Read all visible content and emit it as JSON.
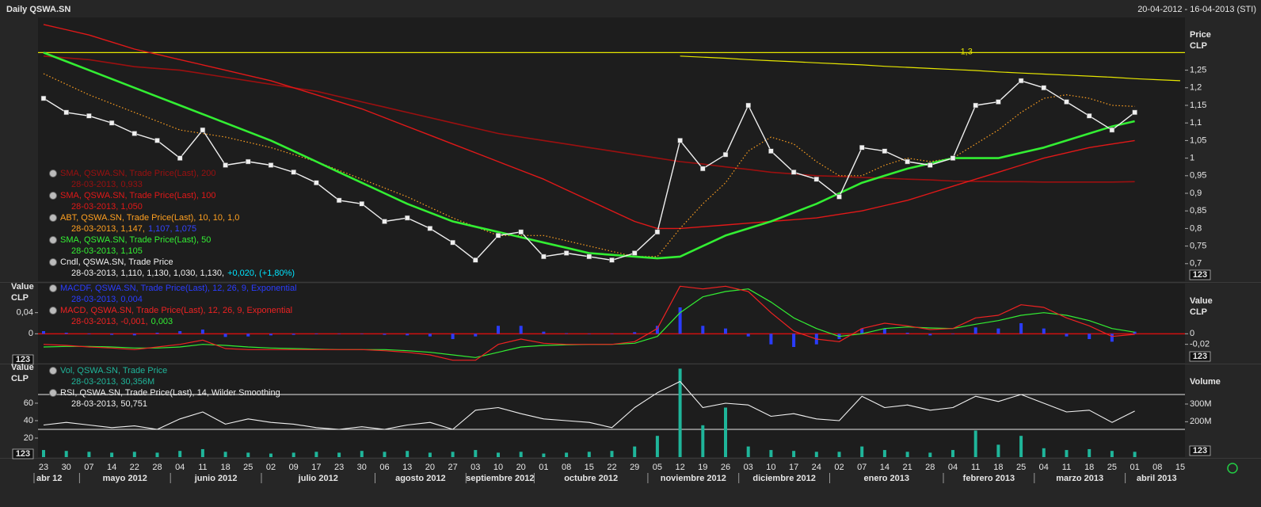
{
  "header": {
    "title": "Daily QSWA.SN",
    "range": "20-04-2012 - 16-04-2013 (STI)",
    "button": "123"
  },
  "chart_data": [
    {
      "type": "line",
      "axis_label_right": [
        "Price",
        "CLP"
      ],
      "ylim": [
        0.65,
        1.4
      ],
      "yticks": [
        {
          "value": 0.7,
          "label": "0,7"
        },
        {
          "value": 0.75,
          "label": "0,75"
        },
        {
          "value": 0.8,
          "label": "0,8"
        },
        {
          "value": 0.85,
          "label": "0,85"
        },
        {
          "value": 0.9,
          "label": "0,9"
        },
        {
          "value": 0.95,
          "label": "0,95"
        },
        1,
        {
          "value": 1.05,
          "label": "1,05"
        },
        {
          "value": 1.1,
          "label": "1,1"
        },
        {
          "value": 1.15,
          "label": "1,15"
        },
        {
          "value": 1.2,
          "label": "1,2"
        },
        {
          "value": 1.25,
          "label": "1,25"
        }
      ],
      "hline": {
        "value": 1.3,
        "label": "1,3",
        "color": "#e6e600"
      },
      "series": [
        {
          "color": "#e6e600",
          "style": "line",
          "width": 1.2,
          "values": [
            null,
            null,
            null,
            null,
            null,
            null,
            null,
            null,
            null,
            null,
            null,
            null,
            null,
            null,
            null,
            null,
            null,
            null,
            null,
            null,
            null,
            null,
            null,
            null,
            null,
            null,
            null,
            null,
            1.29,
            1.287,
            1.284,
            1.28,
            1.277,
            1.274,
            1.271,
            1.268,
            1.265,
            1.261,
            1.258,
            1.255,
            1.252,
            1.249,
            1.245,
            1.242,
            1.239,
            1.236,
            1.233,
            1.23,
            1.226,
            1.223,
            1.22
          ]
        },
        {
          "color": "#9b1010",
          "style": "line",
          "width": 1.6,
          "legend": [
            [
              {
                "text": "SMA, QSWA.SN, Trade Price(Last), 200",
                "color": "#9b1010"
              }
            ],
            [
              {
                "text": "28-03-2013, 0,933",
                "color": "#9b1010"
              }
            ]
          ],
          "values": [
            1.29,
            1.285,
            1.28,
            1.27,
            1.26,
            1.255,
            1.25,
            1.24,
            1.23,
            1.22,
            1.21,
            1.2,
            1.19,
            1.175,
            1.16,
            1.145,
            1.13,
            1.115,
            1.1,
            1.085,
            1.07,
            1.06,
            1.05,
            1.04,
            1.03,
            1.02,
            1.01,
            1.0,
            0.99,
            0.983,
            0.975,
            0.968,
            0.96,
            0.955,
            0.95,
            0.948,
            0.945,
            0.943,
            0.94,
            0.938,
            0.935,
            0.934,
            0.933,
            0.933,
            0.932,
            0.932,
            0.932,
            0.932,
            0.933,
            null,
            null
          ]
        },
        {
          "color": "#e01818",
          "style": "line",
          "width": 1.4,
          "legend": [
            [
              {
                "text": "SMA, QSWA.SN, Trade Price(Last), 100",
                "color": "#e01818"
              }
            ],
            [
              {
                "text": "28-03-2013, 1,050",
                "color": "#e01818"
              }
            ]
          ],
          "values": [
            1.38,
            1.365,
            1.35,
            1.33,
            1.31,
            1.295,
            1.28,
            1.265,
            1.25,
            1.235,
            1.22,
            1.2,
            1.18,
            1.16,
            1.14,
            1.115,
            1.09,
            1.065,
            1.04,
            1.015,
            0.99,
            0.965,
            0.94,
            0.91,
            0.88,
            0.85,
            0.82,
            0.8,
            0.8,
            0.805,
            0.81,
            0.815,
            0.82,
            0.825,
            0.83,
            0.84,
            0.85,
            0.865,
            0.88,
            0.9,
            0.92,
            0.94,
            0.96,
            0.98,
            1.0,
            1.015,
            1.03,
            1.04,
            1.05,
            null,
            null
          ]
        },
        {
          "color": "#ffa020",
          "style": "dotted",
          "width": 1.2,
          "legend": [
            [
              {
                "text": "ABT, QSWA.SN, Trade Price(Last), 10, 10, 1,0",
                "color": "#ffa020"
              }
            ],
            [
              {
                "text": "28-03-2013, 1,147,",
                "color": "#ffa020"
              },
              {
                "text": "1,107, 1,075",
                "color": "#3344ff"
              }
            ]
          ],
          "values": [
            1.24,
            1.21,
            1.18,
            1.155,
            1.13,
            1.105,
            1.08,
            1.07,
            1.06,
            1.045,
            1.03,
            1.01,
            0.99,
            0.965,
            0.94,
            0.915,
            0.89,
            0.86,
            0.83,
            0.805,
            0.78,
            0.78,
            0.78,
            0.765,
            0.75,
            0.735,
            0.72,
            0.72,
            0.8,
            0.87,
            0.93,
            1.02,
            1.06,
            1.04,
            0.99,
            0.95,
            0.95,
            0.98,
            1.0,
            0.99,
            1.0,
            1.04,
            1.08,
            1.13,
            1.17,
            1.18,
            1.17,
            1.15,
            1.147,
            null,
            null
          ]
        },
        {
          "color": "#33ee33",
          "style": "line",
          "width": 2.6,
          "legend": [
            [
              {
                "text": "SMA, QSWA.SN, Trade Price(Last), 50",
                "color": "#33ee33"
              }
            ],
            [
              {
                "text": "28-03-2013, 1,105",
                "color": "#33ee33"
              }
            ]
          ],
          "values": [
            1.3,
            1.275,
            1.25,
            1.225,
            1.2,
            1.175,
            1.15,
            1.125,
            1.1,
            1.075,
            1.05,
            1.02,
            0.99,
            0.96,
            0.93,
            0.9,
            0.87,
            0.845,
            0.82,
            0.805,
            0.79,
            0.775,
            0.76,
            0.745,
            0.73,
            0.725,
            0.72,
            0.715,
            0.72,
            0.75,
            0.78,
            0.8,
            0.82,
            0.845,
            0.87,
            0.9,
            0.93,
            0.95,
            0.97,
            0.985,
            1.0,
            1.0,
            1.0,
            1.015,
            1.03,
            1.05,
            1.07,
            1.09,
            1.105,
            null,
            null
          ]
        },
        {
          "color": "#f0f0f0",
          "style": "line",
          "width": 1.4,
          "markers": true,
          "legend": [
            [
              {
                "text": "Cndl, QSWA.SN, Trade Price",
                "color": "#f0f0f0"
              }
            ],
            [
              {
                "text": "28-03-2013, 1,110, 1,130, 1,030, 1,130,",
                "color": "#f0f0f0"
              },
              {
                "text": "+0,020, (+1,80%)",
                "color": "#00e5ff"
              }
            ]
          ],
          "values": [
            1.17,
            1.13,
            1.12,
            1.1,
            1.07,
            1.05,
            1.0,
            1.08,
            0.98,
            0.99,
            0.98,
            0.96,
            0.93,
            0.88,
            0.87,
            0.82,
            0.83,
            0.8,
            0.76,
            0.71,
            0.78,
            0.79,
            0.72,
            0.73,
            0.72,
            0.71,
            0.73,
            0.79,
            1.05,
            0.97,
            1.01,
            1.15,
            1.02,
            0.96,
            0.94,
            0.89,
            1.03,
            1.02,
            0.99,
            0.98,
            1.0,
            1.15,
            1.16,
            1.22,
            1.2,
            1.16,
            1.12,
            1.08,
            1.13,
            null,
            null
          ]
        }
      ]
    },
    {
      "type": "line",
      "axis_label_left": [
        "Value",
        "CLP"
      ],
      "axis_label_right": [
        "Value",
        "CLP"
      ],
      "ylim": [
        -0.055,
        0.095
      ],
      "yticks": [
        0,
        {
          "value": -0.02,
          "label": "-0,02"
        }
      ],
      "yticks_left": [
        {
          "value": 0.04,
          "label": "0,04"
        },
        0
      ],
      "zero_line_color": "#d01010",
      "series": [
        {
          "color": "#2a3cff",
          "style": "bar",
          "legend": [
            [
              {
                "text": "MACDF, QSWA.SN, Trade Price(Last), 12, 26, 9, Exponential",
                "color": "#2a3cff"
              }
            ],
            [
              {
                "text": "28-03-2013, 0,004",
                "color": "#2a3cff"
              }
            ]
          ],
          "values": [
            0.005,
            0.002,
            -0.001,
            -0.002,
            -0.003,
            0.002,
            0.005,
            0.008,
            -0.006,
            -0.005,
            -0.003,
            -0.002,
            -0.001,
            0,
            0,
            -0.002,
            -0.003,
            -0.005,
            -0.01,
            -0.005,
            0.015,
            0.015,
            0.004,
            0.001,
            0,
            0,
            0.003,
            0.015,
            0.05,
            0.015,
            0.01,
            -0.005,
            -0.02,
            -0.025,
            -0.02,
            -0.01,
            0.01,
            0.01,
            0.002,
            -0.003,
            0,
            0.012,
            0.01,
            0.02,
            0.01,
            -0.005,
            -0.01,
            -0.015,
            0.004,
            null,
            null
          ]
        },
        {
          "color": "#33ee33",
          "style": "line",
          "width": 1.2,
          "values": [
            -0.025,
            -0.024,
            -0.024,
            -0.025,
            -0.027,
            -0.027,
            -0.025,
            -0.02,
            -0.022,
            -0.025,
            -0.027,
            -0.028,
            -0.029,
            -0.03,
            -0.03,
            -0.03,
            -0.032,
            -0.035,
            -0.04,
            -0.045,
            -0.035,
            -0.025,
            -0.022,
            -0.021,
            -0.02,
            -0.02,
            -0.018,
            -0.005,
            0.04,
            0.07,
            0.08,
            0.085,
            0.06,
            0.03,
            0.01,
            -0.005,
            0.0,
            0.01,
            0.013,
            0.011,
            0.01,
            0.018,
            0.025,
            0.035,
            0.04,
            0.035,
            0.025,
            0.01,
            0.003,
            null,
            null
          ]
        },
        {
          "color": "#ee2222",
          "style": "line",
          "width": 1.2,
          "legend": [
            [
              {
                "text": "MACD, QSWA.SN, Trade Price(Last), 12, 26, 9, Exponential",
                "color": "#ee2222"
              }
            ],
            [
              {
                "text": "28-03-2013, -0,001,",
                "color": "#ee2222"
              },
              {
                "text": "0,003",
                "color": "#33ee33"
              }
            ]
          ],
          "values": [
            -0.02,
            -0.022,
            -0.025,
            -0.027,
            -0.03,
            -0.025,
            -0.02,
            -0.012,
            -0.028,
            -0.03,
            -0.03,
            -0.03,
            -0.03,
            -0.03,
            -0.03,
            -0.032,
            -0.035,
            -0.04,
            -0.05,
            -0.05,
            -0.02,
            -0.01,
            -0.018,
            -0.02,
            -0.02,
            -0.02,
            -0.015,
            0.01,
            0.09,
            0.085,
            0.09,
            0.08,
            0.04,
            0.005,
            -0.01,
            -0.015,
            0.01,
            0.02,
            0.015,
            0.008,
            0.01,
            0.03,
            0.035,
            0.055,
            0.05,
            0.03,
            0.015,
            -0.005,
            -0.001,
            null,
            null
          ]
        }
      ]
    },
    {
      "type": "line",
      "axis_label_left": [
        "Value",
        "CLP"
      ],
      "axis_label_right": [
        "Volume"
      ],
      "ylim": [
        -1.8,
        104.5
      ],
      "yticks": [
        20,
        40,
        60
      ],
      "levels": [
        30,
        70
      ],
      "y2lim": [
        0,
        524
      ],
      "y2ticks": [
        {
          "value": 200,
          "label": "200M"
        },
        {
          "value": 300,
          "label": "300M"
        }
      ],
      "categories": [
        "23",
        "30",
        "07",
        "14",
        "22",
        "28",
        "04",
        "11",
        "18",
        "25",
        "02",
        "09",
        "17",
        "23",
        "30",
        "06",
        "13",
        "20",
        "27",
        "03",
        "10",
        "20",
        "01",
        "08",
        "15",
        "22",
        "29",
        "05",
        "12",
        "19",
        "26",
        "03",
        "10",
        "17",
        "24",
        "02",
        "07",
        "14",
        "21",
        "28",
        "04",
        "11",
        "18",
        "25",
        "04",
        "11",
        "18",
        "25",
        "01",
        "08",
        "15"
      ],
      "months": [
        "abr 12",
        "mayo 2012",
        "junio 2012",
        "julio 2012",
        "agosto 2012",
        "septiembre 2012",
        "octubre 2012",
        "noviembre 2012",
        "diciembre 2012",
        "enero 2013",
        "febrero 2013",
        "marzo 2013",
        "abril 2013"
      ],
      "series": [
        {
          "color": "#1fb59a",
          "style": "bar",
          "axis": "y2",
          "legend": [
            [
              {
                "text": "Vol, QSWA.SN, Trade Price",
                "color": "#1fb59a"
              }
            ],
            [
              {
                "text": "28-03-2013, 30,356M",
                "color": "#1fb59a"
              }
            ]
          ],
          "values": [
            40,
            35,
            30,
            25,
            30,
            25,
            35,
            45,
            30,
            25,
            20,
            25,
            30,
            25,
            35,
            30,
            35,
            25,
            30,
            40,
            25,
            30,
            20,
            25,
            30,
            35,
            60,
            120,
            500,
            180,
            280,
            60,
            40,
            35,
            30,
            30,
            60,
            40,
            30,
            25,
            40,
            150,
            70,
            120,
            50,
            40,
            45,
            35,
            30,
            null,
            null
          ]
        },
        {
          "color": "#f0f0f0",
          "style": "line",
          "width": 1.1,
          "legend": [
            [
              {
                "text": "RSI, QSWA.SN, Trade Price(Last), 14, Wilder Smoothing",
                "color": "#f0f0f0"
              }
            ],
            [
              {
                "text": "28-03-2013, 50,751",
                "color": "#f0f0f0"
              }
            ]
          ],
          "values": [
            35,
            38,
            35,
            32,
            34,
            30,
            42,
            50,
            36,
            42,
            38,
            36,
            32,
            30,
            33,
            30,
            35,
            38,
            30,
            52,
            55,
            48,
            42,
            40,
            38,
            32,
            55,
            72,
            85,
            55,
            60,
            58,
            45,
            48,
            42,
            40,
            68,
            55,
            58,
            52,
            55,
            68,
            62,
            70,
            60,
            50,
            52,
            38,
            51,
            null,
            null
          ]
        }
      ]
    }
  ]
}
